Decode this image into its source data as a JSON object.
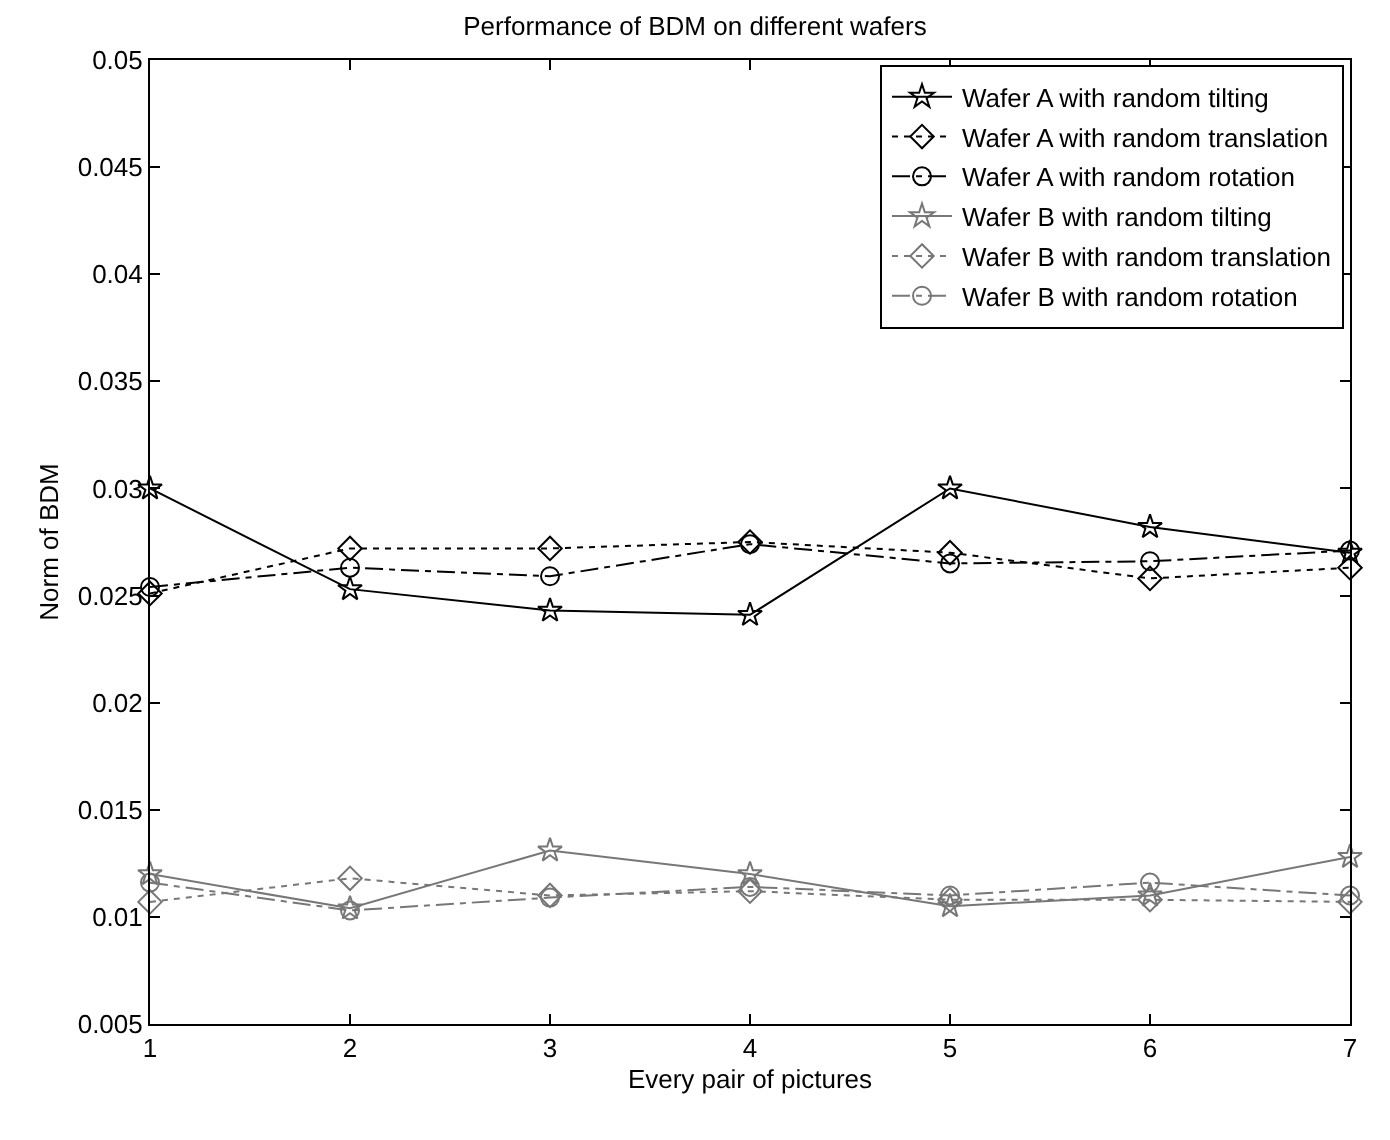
{
  "chart_data": {
    "type": "line",
    "title": "Performance of BDM on different wafers",
    "xlabel": "Every pair of pictures",
    "ylabel": "Norm of BDM",
    "x": [
      1,
      2,
      3,
      4,
      5,
      6,
      7
    ],
    "xlim": [
      1,
      7
    ],
    "xticks": [
      1,
      2,
      3,
      4,
      5,
      6,
      7
    ],
    "ylim": [
      0.005,
      0.05
    ],
    "yticks": [
      0.005,
      0.01,
      0.015,
      0.02,
      0.025,
      0.03,
      0.035,
      0.04,
      0.045,
      0.05
    ],
    "legend": "top right",
    "series": [
      {
        "name": "Wafer A with random tilting",
        "color": "#000000",
        "marker": "star",
        "line_style": "solid",
        "values": [
          0.03,
          0.0253,
          0.0243,
          0.0241,
          0.03,
          0.0282,
          0.027
        ]
      },
      {
        "name": "Wafer A with random translation",
        "color": "#000000",
        "marker": "diamond",
        "line_style": "dotted",
        "values": [
          0.0251,
          0.0272,
          0.0272,
          0.0275,
          0.027,
          0.0258,
          0.0263
        ]
      },
      {
        "name": "Wafer A with random rotation",
        "color": "#000000",
        "marker": "circle",
        "line_style": "dashed",
        "values": [
          0.0254,
          0.0263,
          0.0259,
          0.0274,
          0.0265,
          0.0266,
          0.0271
        ]
      },
      {
        "name": "Wafer B with random tilting",
        "color": "#777777",
        "marker": "star",
        "line_style": "solid",
        "values": [
          0.012,
          0.0104,
          0.0131,
          0.012,
          0.0105,
          0.011,
          0.0128
        ]
      },
      {
        "name": "Wafer B with random translation",
        "color": "#777777",
        "marker": "diamond",
        "line_style": "dotted",
        "values": [
          0.0107,
          0.0118,
          0.011,
          0.0112,
          0.0108,
          0.0108,
          0.0107
        ]
      },
      {
        "name": "Wafer B with random rotation",
        "color": "#777777",
        "marker": "circle",
        "line_style": "dashed",
        "values": [
          0.0116,
          0.0103,
          0.0109,
          0.0114,
          0.011,
          0.0116,
          0.011
        ]
      }
    ]
  }
}
